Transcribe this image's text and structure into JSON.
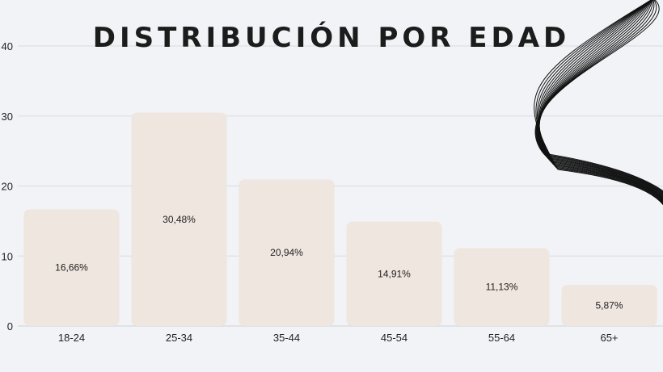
{
  "chart_data": {
    "type": "bar",
    "title": "DISTRIBUCIÓN POR EDAD",
    "categories": [
      "18-24",
      "25-34",
      "35-44",
      "45-54",
      "55-64",
      "65+"
    ],
    "values": [
      16.66,
      30.48,
      20.94,
      14.91,
      11.13,
      5.87
    ],
    "data_labels": [
      "16,66%",
      "30,48%",
      "20,94%",
      "14,91%",
      "11,13%",
      "5,87%"
    ],
    "yticks": [
      "0",
      "10",
      "20",
      "30",
      "40"
    ],
    "ylim": [
      0,
      40
    ],
    "grid": true,
    "legend": "none",
    "bar_color": "#efe6df"
  }
}
